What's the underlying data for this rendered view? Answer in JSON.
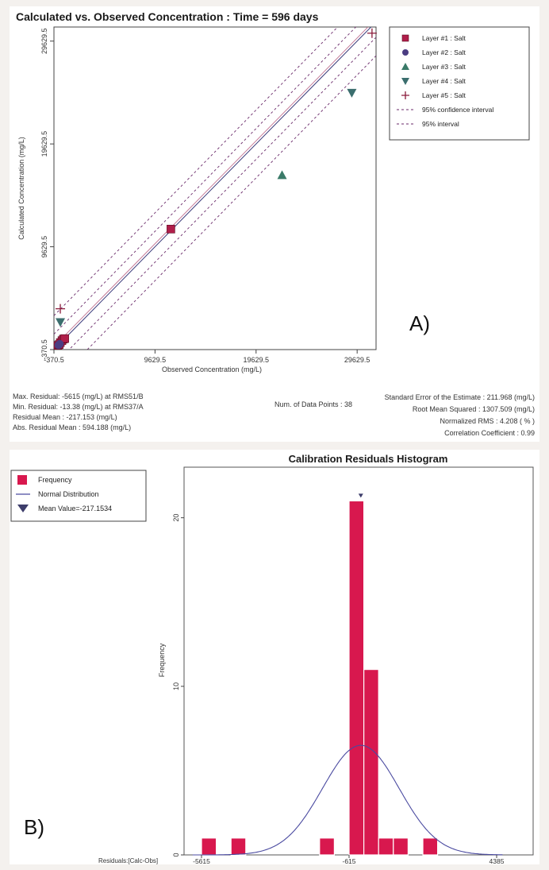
{
  "chart_data": [
    {
      "type": "scatter",
      "title": "Calculated vs. Observed Concentration : Time = 596 days",
      "xlabel": "Observed Concentration (mg/L)",
      "ylabel": "Calculated Concentration (mg/L)",
      "xlim": [
        -370.5,
        31500
      ],
      "ylim": [
        -370.5,
        31000
      ],
      "x_ticks": [
        "-370.5",
        "9629.5",
        "19629.5",
        "29629.5"
      ],
      "y_ticks": [
        "-370.5",
        "9629.5",
        "19629.5",
        "29629.5"
      ],
      "x_tick_values": [
        -370.5,
        9629.5,
        19629.5,
        29629.5
      ],
      "y_tick_values": [
        -370.5,
        9629.5,
        19629.5,
        29629.5
      ],
      "grid": false,
      "legend_position": "top-right",
      "legend": [
        {
          "label": "Layer #1 : Salt",
          "marker": "square",
          "color": "#b01e4a"
        },
        {
          "label": "Layer #2 : Salt",
          "marker": "circle",
          "color": "#4b3d82"
        },
        {
          "label": "Layer #3 : Salt",
          "marker": "triangle-up",
          "color": "#3a7a68"
        },
        {
          "label": "Layer #4 : Salt",
          "marker": "triangle-down",
          "color": "#3b6e6e"
        },
        {
          "label": "Layer #5 : Salt",
          "marker": "plus",
          "color": "#8a1a3a"
        },
        {
          "label": "95% confidence interval",
          "marker": "dashed",
          "color": "#6a2a6a"
        },
        {
          "label": "95% interval",
          "marker": "dashed",
          "color": "#6a2a6a"
        }
      ],
      "series": [
        {
          "name": "Layer #1 : Salt",
          "marker": "square",
          "color": "#b01e4a",
          "points": [
            [
              11200,
              11350
            ],
            [
              30,
              40
            ],
            [
              150,
              120
            ],
            [
              260,
              310
            ],
            [
              420,
              500
            ],
            [
              560,
              650
            ],
            [
              700,
              700
            ]
          ]
        },
        {
          "name": "Layer #2 : Salt",
          "marker": "circle",
          "color": "#4b3d82",
          "points": [
            [
              80,
              60
            ],
            [
              200,
              180
            ]
          ]
        },
        {
          "name": "Layer #3 : Salt",
          "marker": "triangle-up",
          "color": "#3a7a68",
          "points": [
            [
              22200,
              16600
            ]
          ]
        },
        {
          "name": "Layer #4 : Salt",
          "marker": "triangle-down",
          "color": "#3b6e6e",
          "points": [
            [
              29100,
              24600
            ],
            [
              260,
              2300
            ]
          ]
        },
        {
          "name": "Layer #5 : Salt",
          "marker": "plus",
          "color": "#8a1a3a",
          "points": [
            [
              31100,
              30400
            ],
            [
              260,
              3600
            ]
          ]
        }
      ],
      "stats": {
        "num_points": "Num. of Data Points : 38",
        "max_residual": "Max. Residual: -5615 (mg/L) at RMS51/B",
        "min_residual": "Min. Residual: -13.38 (mg/L) at RMS37/A",
        "residual_mean": "Residual Mean : -217.153 (mg/L)",
        "abs_residual_mean": "Abs. Residual Mean : 594.188 (mg/L)",
        "std_error": "Standard Error of the Estimate : 211.968 (mg/L)",
        "rms": "Root Mean Squared : 1307.509 (mg/L)",
        "norm_rms": "Normalized RMS : 4.208 ( % )",
        "corr": "Correlation Coefficient : 0.99"
      }
    },
    {
      "type": "bar",
      "title": "Calibration Residuals Histogram",
      "xlabel": "Residuals:[Calc-Obs]",
      "ylabel": "Frequency",
      "xlim": [
        -5615,
        4385
      ],
      "ylim": [
        0,
        23
      ],
      "x_ticks": [
        "-5615",
        "-615",
        "4385"
      ],
      "x_tick_values": [
        -5615,
        -615,
        4385
      ],
      "y_ticks": [
        "0",
        "10",
        "20"
      ],
      "y_tick_values": [
        0,
        10,
        20
      ],
      "bin_width": 500,
      "bars": [
        {
          "start": -5615,
          "value": 1
        },
        {
          "start": -4615,
          "value": 1
        },
        {
          "start": -1615,
          "value": 1
        },
        {
          "start": -615,
          "value": 21
        },
        {
          "start": -115,
          "value": 11
        },
        {
          "start": 385,
          "value": 1
        },
        {
          "start": 885,
          "value": 1
        },
        {
          "start": 1885,
          "value": 1
        }
      ],
      "normal_curve": {
        "peak_x": -217.1534,
        "peak_y": 6.5,
        "sigma": 1300
      },
      "mean_value": -217.1534,
      "bar_color": "#d8184e",
      "curve_color": "#4a4aa0",
      "legend_position": "top-left",
      "legend": [
        {
          "label": "Frequency",
          "marker": "square",
          "color": "#d8184e"
        },
        {
          "label": "Normal Distribution",
          "marker": "line",
          "color": "#4a4aa0"
        },
        {
          "label": "Mean Value=-217.1534",
          "marker": "triangle-down",
          "color": "#3d3d6b"
        }
      ]
    }
  ],
  "labels": {
    "panel_a": "A)",
    "panel_b": "B)"
  }
}
